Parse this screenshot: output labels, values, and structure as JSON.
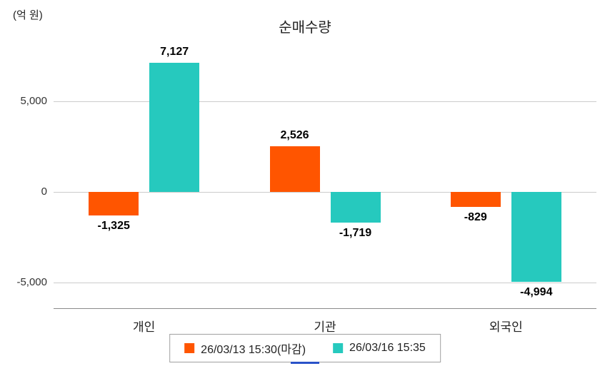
{
  "chart_data": {
    "type": "bar",
    "title": "순매수량",
    "ylabel": "(억 원)",
    "xlabel": "",
    "categories": [
      "개인",
      "기관",
      "외국인"
    ],
    "series": [
      {
        "name": "26/03/13 15:30(마감)",
        "color": "#FF5500",
        "values": [
          -1325,
          2526,
          -829
        ],
        "labels": [
          "-1,325",
          "2,526",
          "-829"
        ]
      },
      {
        "name": "26/03/16 15:35",
        "color": "#26C9BE",
        "values": [
          7127,
          -1719,
          -4994
        ],
        "labels": [
          "7,127",
          "-1,719",
          "-4,994"
        ]
      }
    ],
    "yticks": [
      {
        "value": 5000,
        "label": "5,000"
      },
      {
        "value": 0,
        "label": "0"
      },
      {
        "value": -5000,
        "label": "-5,000"
      }
    ],
    "ylim": [
      -6440,
      8440
    ],
    "grid": true,
    "legend_position": "bottom"
  }
}
